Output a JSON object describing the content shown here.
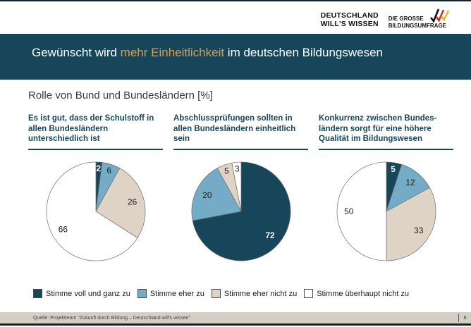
{
  "colors": {
    "teal": "#17465a",
    "orange": "#e39c3c",
    "rule": "#0e2531",
    "footer_bg": "#d5cfc3",
    "slice_stroke": "#6b6b6b"
  },
  "logos": {
    "brand1_line1": "DEUTSCHLAND",
    "brand1_line2": "WILL'S WISSEN",
    "brand2_line1": "DIE GROSSE",
    "brand2_line2": "BILDUNGSUMFRAGE",
    "checkmark_colors": [
      "#111111",
      "#c8281e",
      "#e8b321"
    ]
  },
  "title": {
    "pre": "Gewünscht wird ",
    "highlight": "mehr Einheitlichkeit",
    "post": " im deutschen Bildungswesen"
  },
  "subtitle": "Rolle von Bund und Bundesländern [%]",
  "legend": [
    {
      "label": "Stimme voll und ganz zu",
      "color": "#17465a"
    },
    {
      "label": "Stimme eher zu",
      "color": "#74abc7"
    },
    {
      "label": "Stimme eher nicht zu",
      "color": "#ded3c5"
    },
    {
      "label": "Stimme überhaupt nicht zu",
      "color": "#ffffff"
    }
  ],
  "chart_data": [
    {
      "type": "pie",
      "title": "Es ist gut, dass der Schulstoff in allen Bundesländern unterschiedlich ist",
      "categories": [
        "Stimme voll und ganz zu",
        "Stimme eher zu",
        "Stimme eher nicht zu",
        "Stimme überhaupt nicht zu"
      ],
      "values": [
        2,
        6,
        26,
        66
      ],
      "unit": "%",
      "start_angle": "12 o'clock, clockwise"
    },
    {
      "type": "pie",
      "title": "Abschlussprüfungen sollten in allen Bundesländern einheitlich sein",
      "categories": [
        "Stimme voll und ganz zu",
        "Stimme eher zu",
        "Stimme eher nicht zu",
        "Stimme überhaupt nicht zu"
      ],
      "values": [
        72,
        20,
        5,
        3
      ],
      "unit": "%",
      "start_angle": "12 o'clock, clockwise"
    },
    {
      "type": "pie",
      "title": "Konkurrenz zwischen Bundes-ländern sorgt für eine höhere Qualität im Bildungswesen",
      "categories": [
        "Stimme voll und ganz zu",
        "Stimme eher zu",
        "Stimme eher nicht zu",
        "Stimme überhaupt nicht zu"
      ],
      "values": [
        5,
        12,
        33,
        50
      ],
      "unit": "%",
      "start_angle": "12 o'clock, clockwise"
    }
  ],
  "footer": {
    "source": "Quelle: Projektteam \"Zukunft durch Bildung – Deutschland will's wissen\"",
    "page": "8"
  }
}
